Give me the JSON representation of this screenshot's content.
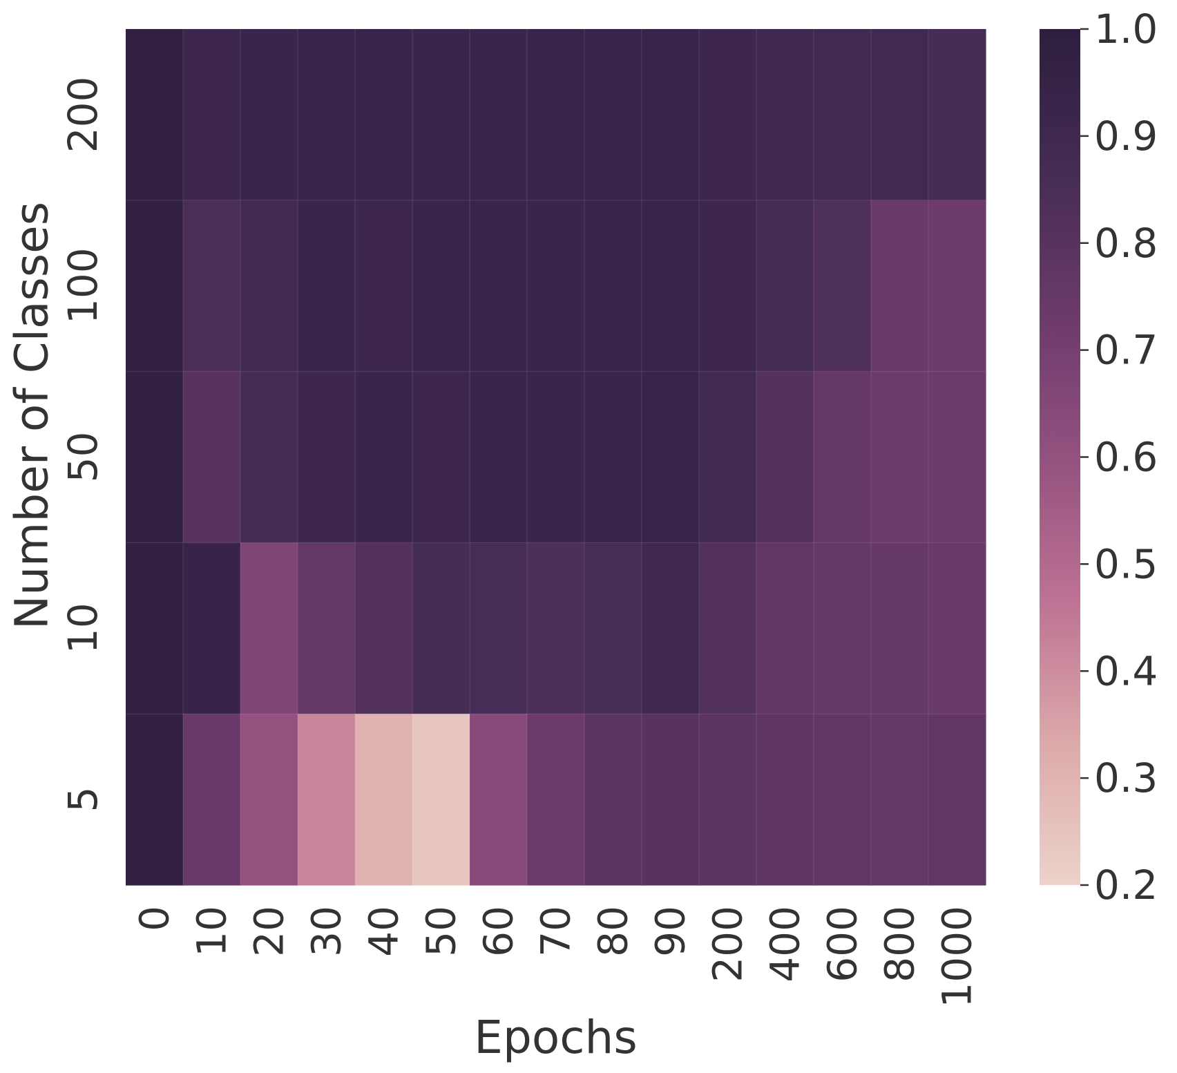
{
  "chart_data": {
    "type": "heatmap",
    "title": "",
    "xlabel": "Epochs",
    "ylabel": "Number of Classes",
    "x_categories": [
      "0",
      "10",
      "20",
      "30",
      "40",
      "50",
      "60",
      "70",
      "80",
      "90",
      "200",
      "400",
      "600",
      "800",
      "1000"
    ],
    "y_categories": [
      "200",
      "100",
      "50",
      "10",
      "5"
    ],
    "values": [
      [
        0.98,
        0.91,
        0.92,
        0.93,
        0.93,
        0.92,
        0.92,
        0.93,
        0.93,
        0.93,
        0.91,
        0.9,
        0.89,
        0.89,
        0.87
      ],
      [
        0.98,
        0.85,
        0.89,
        0.92,
        0.91,
        0.92,
        0.92,
        0.92,
        0.93,
        0.93,
        0.91,
        0.88,
        0.83,
        0.74,
        0.73
      ],
      [
        0.98,
        0.8,
        0.87,
        0.91,
        0.92,
        0.91,
        0.92,
        0.92,
        0.92,
        0.93,
        0.89,
        0.81,
        0.75,
        0.73,
        0.73
      ],
      [
        0.98,
        0.94,
        0.67,
        0.76,
        0.82,
        0.87,
        0.86,
        0.84,
        0.86,
        0.9,
        0.82,
        0.77,
        0.75,
        0.75,
        0.74
      ],
      [
        0.98,
        0.74,
        0.6,
        0.42,
        0.3,
        0.24,
        0.64,
        0.73,
        0.79,
        0.8,
        0.79,
        0.78,
        0.77,
        0.76,
        0.77
      ]
    ],
    "colorbar": {
      "min": 0.2,
      "max": 1.0,
      "ticks": [
        "0.2",
        "0.3",
        "0.4",
        "0.5",
        "0.6",
        "0.7",
        "0.8",
        "0.9",
        "1.0"
      ]
    },
    "colormap": [
      "#ecd2ca",
      "#dca9aa",
      "#bd7293",
      "#93517f",
      "#6b3a6b",
      "#452c54",
      "#2d1e3e"
    ],
    "grid": false,
    "legend": "colorbar-right"
  }
}
